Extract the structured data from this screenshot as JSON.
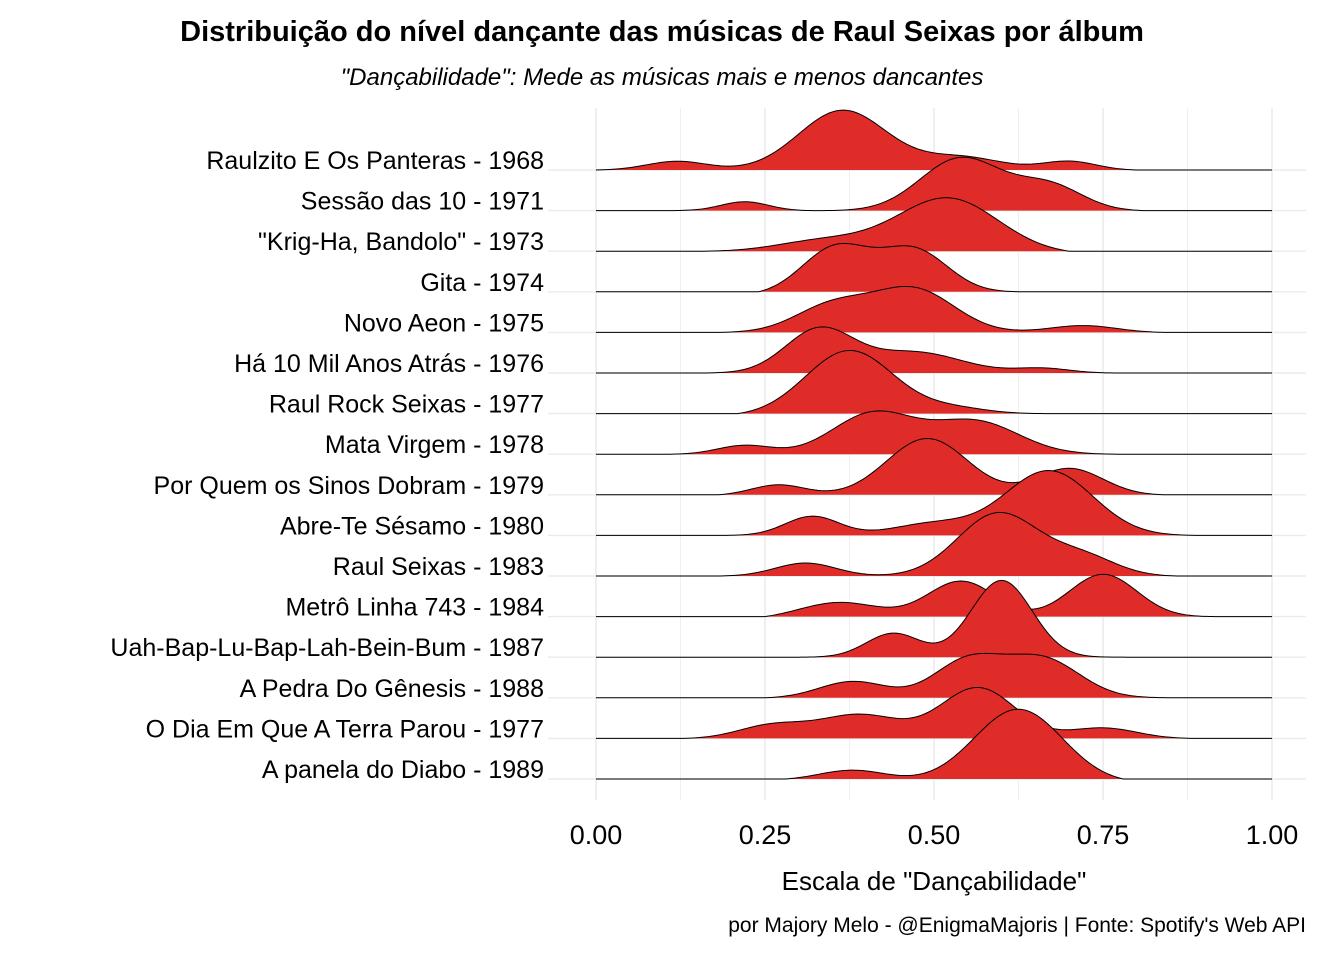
{
  "chart_data": {
    "type": "ridgeline",
    "title": "Distribuição do nível dançante das músicas de Raul Seixas por álbum",
    "subtitle": "\"Dançabilidade\": Mede as músicas mais e menos dancantes",
    "xlabel": "Escala de \"Dançabilidade\"",
    "ylabel": "",
    "caption": "por Majory Melo - @EnigmaMajoris | Fonte: Spotify's Web API",
    "xlim": [
      0,
      1
    ],
    "x_ticks": [
      "0.00",
      "0.25",
      "0.50",
      "0.75",
      "1.00"
    ],
    "x_tick_values": [
      0,
      0.25,
      0.5,
      0.75,
      1.0
    ],
    "grid": true,
    "fill_color": "#e02c28",
    "outline_color": "#000000",
    "grid_color": "#ebebeb",
    "series": [
      {
        "name": "Raulzito E Os Panteras - 1968",
        "range": [
          0.0,
          0.8
        ],
        "peaks": [
          {
            "x": 0.12,
            "h": 0.15,
            "w": 0.045
          },
          {
            "x": 0.365,
            "h": 1.0,
            "w": 0.065
          },
          {
            "x": 0.54,
            "h": 0.22,
            "w": 0.06
          },
          {
            "x": 0.7,
            "h": 0.15,
            "w": 0.04
          }
        ]
      },
      {
        "name": "Sessão das 10 - 1971",
        "range": [
          0.11,
          0.81
        ],
        "peaks": [
          {
            "x": 0.22,
            "h": 0.15,
            "w": 0.035
          },
          {
            "x": 0.54,
            "h": 0.88,
            "w": 0.06
          },
          {
            "x": 0.67,
            "h": 0.42,
            "w": 0.05
          }
        ]
      },
      {
        "name": "\"Krig-Ha, Bandolo\" - 1973",
        "range": [
          0.16,
          0.7
        ],
        "peaks": [
          {
            "x": 0.34,
            "h": 0.2,
            "w": 0.07
          },
          {
            "x": 0.52,
            "h": 0.92,
            "w": 0.075
          }
        ]
      },
      {
        "name": "Gita - 1974",
        "range": [
          0.24,
          0.64
        ],
        "peaks": [
          {
            "x": 0.355,
            "h": 0.78,
            "w": 0.05
          },
          {
            "x": 0.47,
            "h": 0.72,
            "w": 0.05
          }
        ]
      },
      {
        "name": "Novo Aeon - 1975",
        "range": [
          0.18,
          0.84
        ],
        "peaks": [
          {
            "x": 0.35,
            "h": 0.45,
            "w": 0.055
          },
          {
            "x": 0.47,
            "h": 0.72,
            "w": 0.06
          },
          {
            "x": 0.72,
            "h": 0.12,
            "w": 0.05
          }
        ]
      },
      {
        "name": "Há 10 Mil Anos Atrás - 1976",
        "range": [
          0.16,
          0.77
        ],
        "peaks": [
          {
            "x": 0.33,
            "h": 0.72,
            "w": 0.05
          },
          {
            "x": 0.47,
            "h": 0.35,
            "w": 0.07
          },
          {
            "x": 0.66,
            "h": 0.08,
            "w": 0.04
          }
        ]
      },
      {
        "name": "Raul Rock Seixas - 1977",
        "range": [
          0.21,
          0.68
        ],
        "peaks": [
          {
            "x": 0.375,
            "h": 1.08,
            "w": 0.065
          },
          {
            "x": 0.53,
            "h": 0.1,
            "w": 0.05
          }
        ]
      },
      {
        "name": "Mata Virgem - 1978",
        "range": [
          0.11,
          0.77
        ],
        "peaks": [
          {
            "x": 0.22,
            "h": 0.15,
            "w": 0.04
          },
          {
            "x": 0.41,
            "h": 0.68,
            "w": 0.06
          },
          {
            "x": 0.56,
            "h": 0.55,
            "w": 0.065
          }
        ]
      },
      {
        "name": "Por Quem os Sinos Dobram - 1979",
        "range": [
          0.18,
          0.84
        ],
        "peaks": [
          {
            "x": 0.27,
            "h": 0.18,
            "w": 0.04
          },
          {
            "x": 0.49,
            "h": 0.95,
            "w": 0.06
          },
          {
            "x": 0.7,
            "h": 0.45,
            "w": 0.05
          }
        ]
      },
      {
        "name": "Abre-Te Sésamo - 1980",
        "range": [
          0.18,
          0.89
        ],
        "peaks": [
          {
            "x": 0.32,
            "h": 0.32,
            "w": 0.04
          },
          {
            "x": 0.5,
            "h": 0.2,
            "w": 0.06
          },
          {
            "x": 0.67,
            "h": 1.08,
            "w": 0.065
          }
        ]
      },
      {
        "name": "Raul Seixas - 1983",
        "range": [
          0.18,
          0.86
        ],
        "peaks": [
          {
            "x": 0.31,
            "h": 0.22,
            "w": 0.045
          },
          {
            "x": 0.595,
            "h": 1.05,
            "w": 0.06
          },
          {
            "x": 0.72,
            "h": 0.32,
            "w": 0.05
          }
        ]
      },
      {
        "name": "Metrô Linha 743 - 1984",
        "range": [
          0.25,
          0.92
        ],
        "peaks": [
          {
            "x": 0.36,
            "h": 0.28,
            "w": 0.06
          },
          {
            "x": 0.54,
            "h": 0.62,
            "w": 0.05
          },
          {
            "x": 0.75,
            "h": 0.72,
            "w": 0.05
          }
        ]
      },
      {
        "name": "Uah-Bap-Lu-Bap-Lah-Bein-Bum - 1987",
        "range": [
          0.3,
          0.8
        ],
        "peaks": [
          {
            "x": 0.44,
            "h": 0.4,
            "w": 0.04
          },
          {
            "x": 0.6,
            "h": 1.28,
            "w": 0.045
          }
        ]
      },
      {
        "name": "A Pedra Do Gênesis - 1988",
        "range": [
          0.25,
          0.88
        ],
        "peaks": [
          {
            "x": 0.38,
            "h": 0.28,
            "w": 0.05
          },
          {
            "x": 0.55,
            "h": 0.62,
            "w": 0.05
          },
          {
            "x": 0.66,
            "h": 0.65,
            "w": 0.055
          }
        ]
      },
      {
        "name": "O Dia Em Que A Terra Parou - 1977",
        "range": [
          0.13,
          0.88
        ],
        "peaks": [
          {
            "x": 0.26,
            "h": 0.22,
            "w": 0.05
          },
          {
            "x": 0.39,
            "h": 0.4,
            "w": 0.06
          },
          {
            "x": 0.565,
            "h": 0.85,
            "w": 0.055
          },
          {
            "x": 0.75,
            "h": 0.18,
            "w": 0.05
          }
        ]
      },
      {
        "name": "A panela do Diabo - 1989",
        "range": [
          0.28,
          0.78
        ],
        "peaks": [
          {
            "x": 0.38,
            "h": 0.18,
            "w": 0.05
          },
          {
            "x": 0.625,
            "h": 1.22,
            "w": 0.065
          }
        ]
      }
    ]
  }
}
